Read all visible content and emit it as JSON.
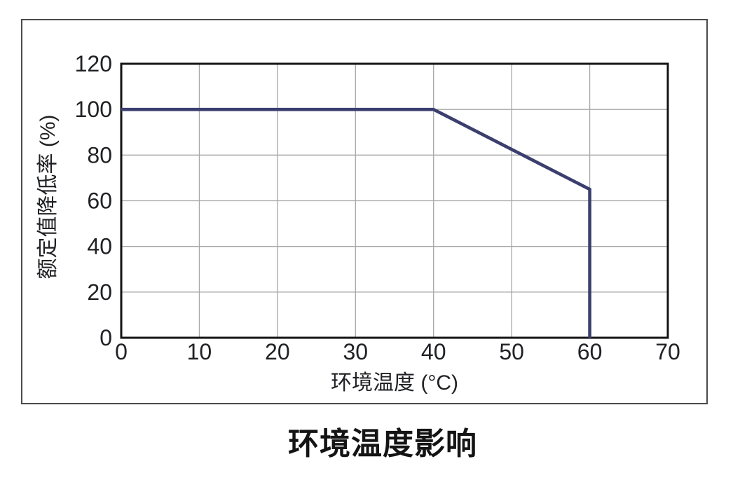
{
  "chart_data": {
    "type": "line",
    "title": "环境温度影响",
    "xlabel": "环境温度 (°C)",
    "ylabel": "额定值降低率 (%)",
    "xlim": [
      0,
      70
    ],
    "ylim": [
      0,
      120
    ],
    "x_ticks": [
      0,
      10,
      20,
      30,
      40,
      50,
      60,
      70
    ],
    "y_ticks": [
      0,
      20,
      40,
      60,
      80,
      100,
      120
    ],
    "grid": true,
    "legend_position": "none",
    "series": [
      {
        "id": "derating-curve",
        "name": "额定值降低率",
        "points": [
          [
            0,
            100
          ],
          [
            40,
            100
          ],
          [
            60,
            65
          ],
          [
            60,
            0
          ]
        ]
      }
    ]
  },
  "colors": {
    "line": "#3b3f6e",
    "grid": "#a7a7a9",
    "frame": "#141414",
    "text": "#202124",
    "box_border": "#4a4b4d",
    "background": "#ffffff"
  }
}
